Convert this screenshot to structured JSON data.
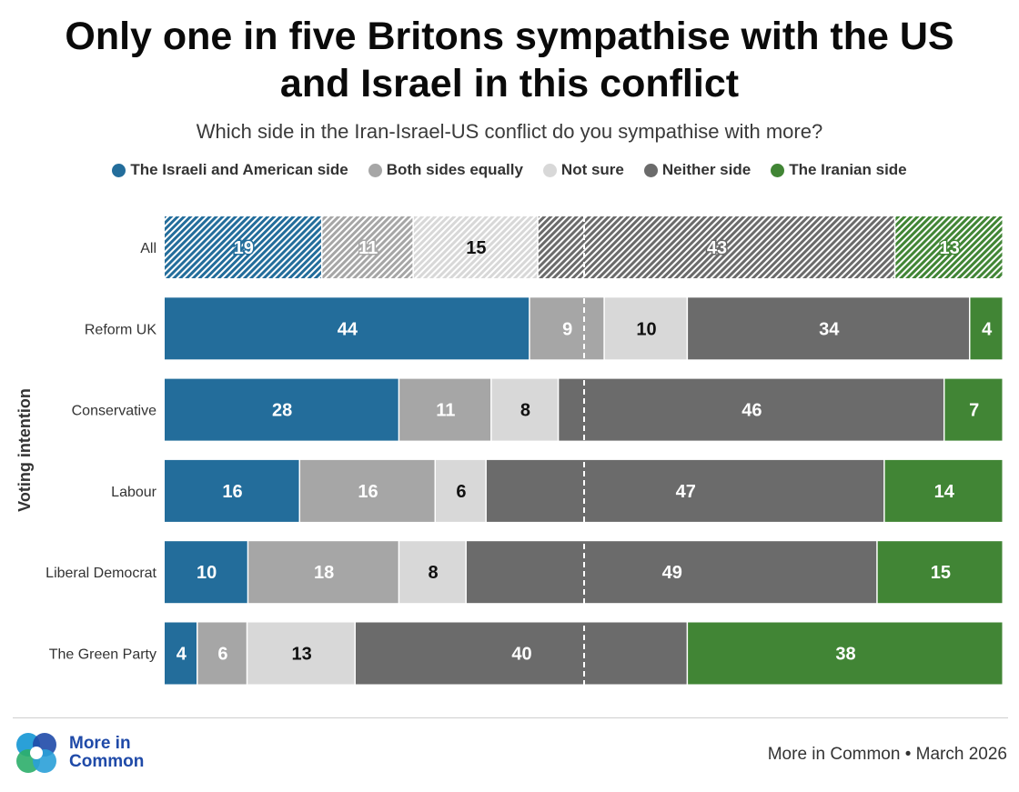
{
  "title": {
    "line1": "Only one in five Britons sympathise with the US",
    "line2": "and Israel in this conflict"
  },
  "subtitle": "Which side in the Iran-Israel-US conflict do you sympathise with more?",
  "colors": {
    "israeli_american": "#236d9b",
    "both_equally": "#a6a6a6",
    "not_sure": "#d8d8d8",
    "neither": "#6b6b6b",
    "iranian": "#418535"
  },
  "chart_data": {
    "type": "bar",
    "orientation": "horizontal",
    "stacked": true,
    "percent_stacked": true,
    "ylabel": "Voting intention",
    "categories": [
      "All",
      "Reform UK",
      "Conservative",
      "Labour",
      "Liberal Democrat",
      "The Green Party"
    ],
    "hatched_categories": [
      "All"
    ],
    "reference_line": "dashed vertical line at the 50% midpoint",
    "series": [
      {
        "name": "The Israeli and American side",
        "color": "#236d9b",
        "label_color": "#ffffff",
        "values": [
          19,
          44,
          28,
          16,
          10,
          4
        ]
      },
      {
        "name": "Both sides equally",
        "color": "#a6a6a6",
        "label_color": "#ffffff",
        "values": [
          11,
          9,
          11,
          16,
          18,
          6
        ]
      },
      {
        "name": "Not sure",
        "color": "#d8d8d8",
        "label_color": "#111111",
        "values": [
          15,
          10,
          8,
          6,
          8,
          13
        ]
      },
      {
        "name": "Neither side",
        "color": "#6b6b6b",
        "label_color": "#ffffff",
        "values": [
          43,
          34,
          46,
          47,
          49,
          40
        ]
      },
      {
        "name": "The Iranian side",
        "color": "#418535",
        "label_color": "#ffffff",
        "values": [
          13,
          4,
          7,
          14,
          15,
          38
        ]
      }
    ],
    "legend_position": "top"
  },
  "footer": {
    "logo_line1": "More in",
    "logo_line2": "Common",
    "source": "More in Common • March 2026"
  }
}
